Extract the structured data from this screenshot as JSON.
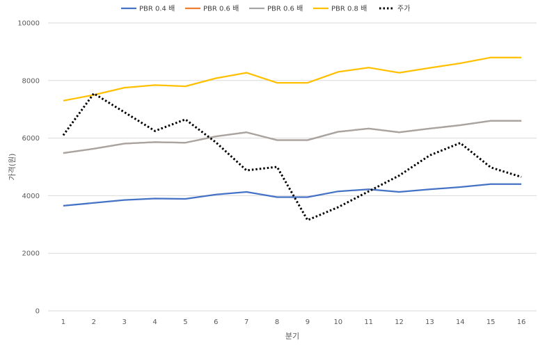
{
  "chart_data": {
    "type": "line",
    "title": "",
    "xlabel": "분기",
    "ylabel": "가격(원)",
    "ylim": [
      0,
      10000
    ],
    "yticks": [
      0,
      2000,
      4000,
      6000,
      8000,
      10000
    ],
    "grid": true,
    "legend_position": "top",
    "categories": [
      1,
      2,
      3,
      4,
      5,
      6,
      7,
      8,
      9,
      10,
      11,
      12,
      13,
      14,
      15,
      16
    ],
    "series": [
      {
        "name": "PBR 0.4 배",
        "color": "#4472C4",
        "dash": "solid",
        "values": [
          3650,
          3750,
          3850,
          3900,
          3890,
          4040,
          4130,
          3950,
          3950,
          4150,
          4220,
          4130,
          4220,
          4300,
          4400,
          4400
        ]
      },
      {
        "name": "PBR 0.6 배",
        "color": "#ED7D31",
        "dash": "solid",
        "values": [
          5480,
          5630,
          5810,
          5860,
          5840,
          6060,
          6200,
          5930,
          5930,
          6220,
          6330,
          6200,
          6330,
          6450,
          6600,
          6600
        ]
      },
      {
        "name": "PBR 0.6 배",
        "color": "#A5A5A5",
        "dash": "solid",
        "values": [
          5480,
          5630,
          5810,
          5860,
          5840,
          6060,
          6200,
          5930,
          5930,
          6220,
          6330,
          6200,
          6330,
          6450,
          6600,
          6600
        ]
      },
      {
        "name": "PBR 0.8 배",
        "color": "#FFC000",
        "dash": "solid",
        "values": [
          7300,
          7500,
          7750,
          7840,
          7800,
          8080,
          8270,
          7920,
          7920,
          8300,
          8450,
          8270,
          8440,
          8600,
          8800,
          8800
        ]
      },
      {
        "name": "주가",
        "color": "#000000",
        "dash": "dotted",
        "values": [
          6100,
          7550,
          6900,
          6250,
          6650,
          5850,
          4880,
          5000,
          3150,
          3600,
          4150,
          4700,
          5400,
          5830,
          4980,
          4650
        ]
      }
    ]
  }
}
